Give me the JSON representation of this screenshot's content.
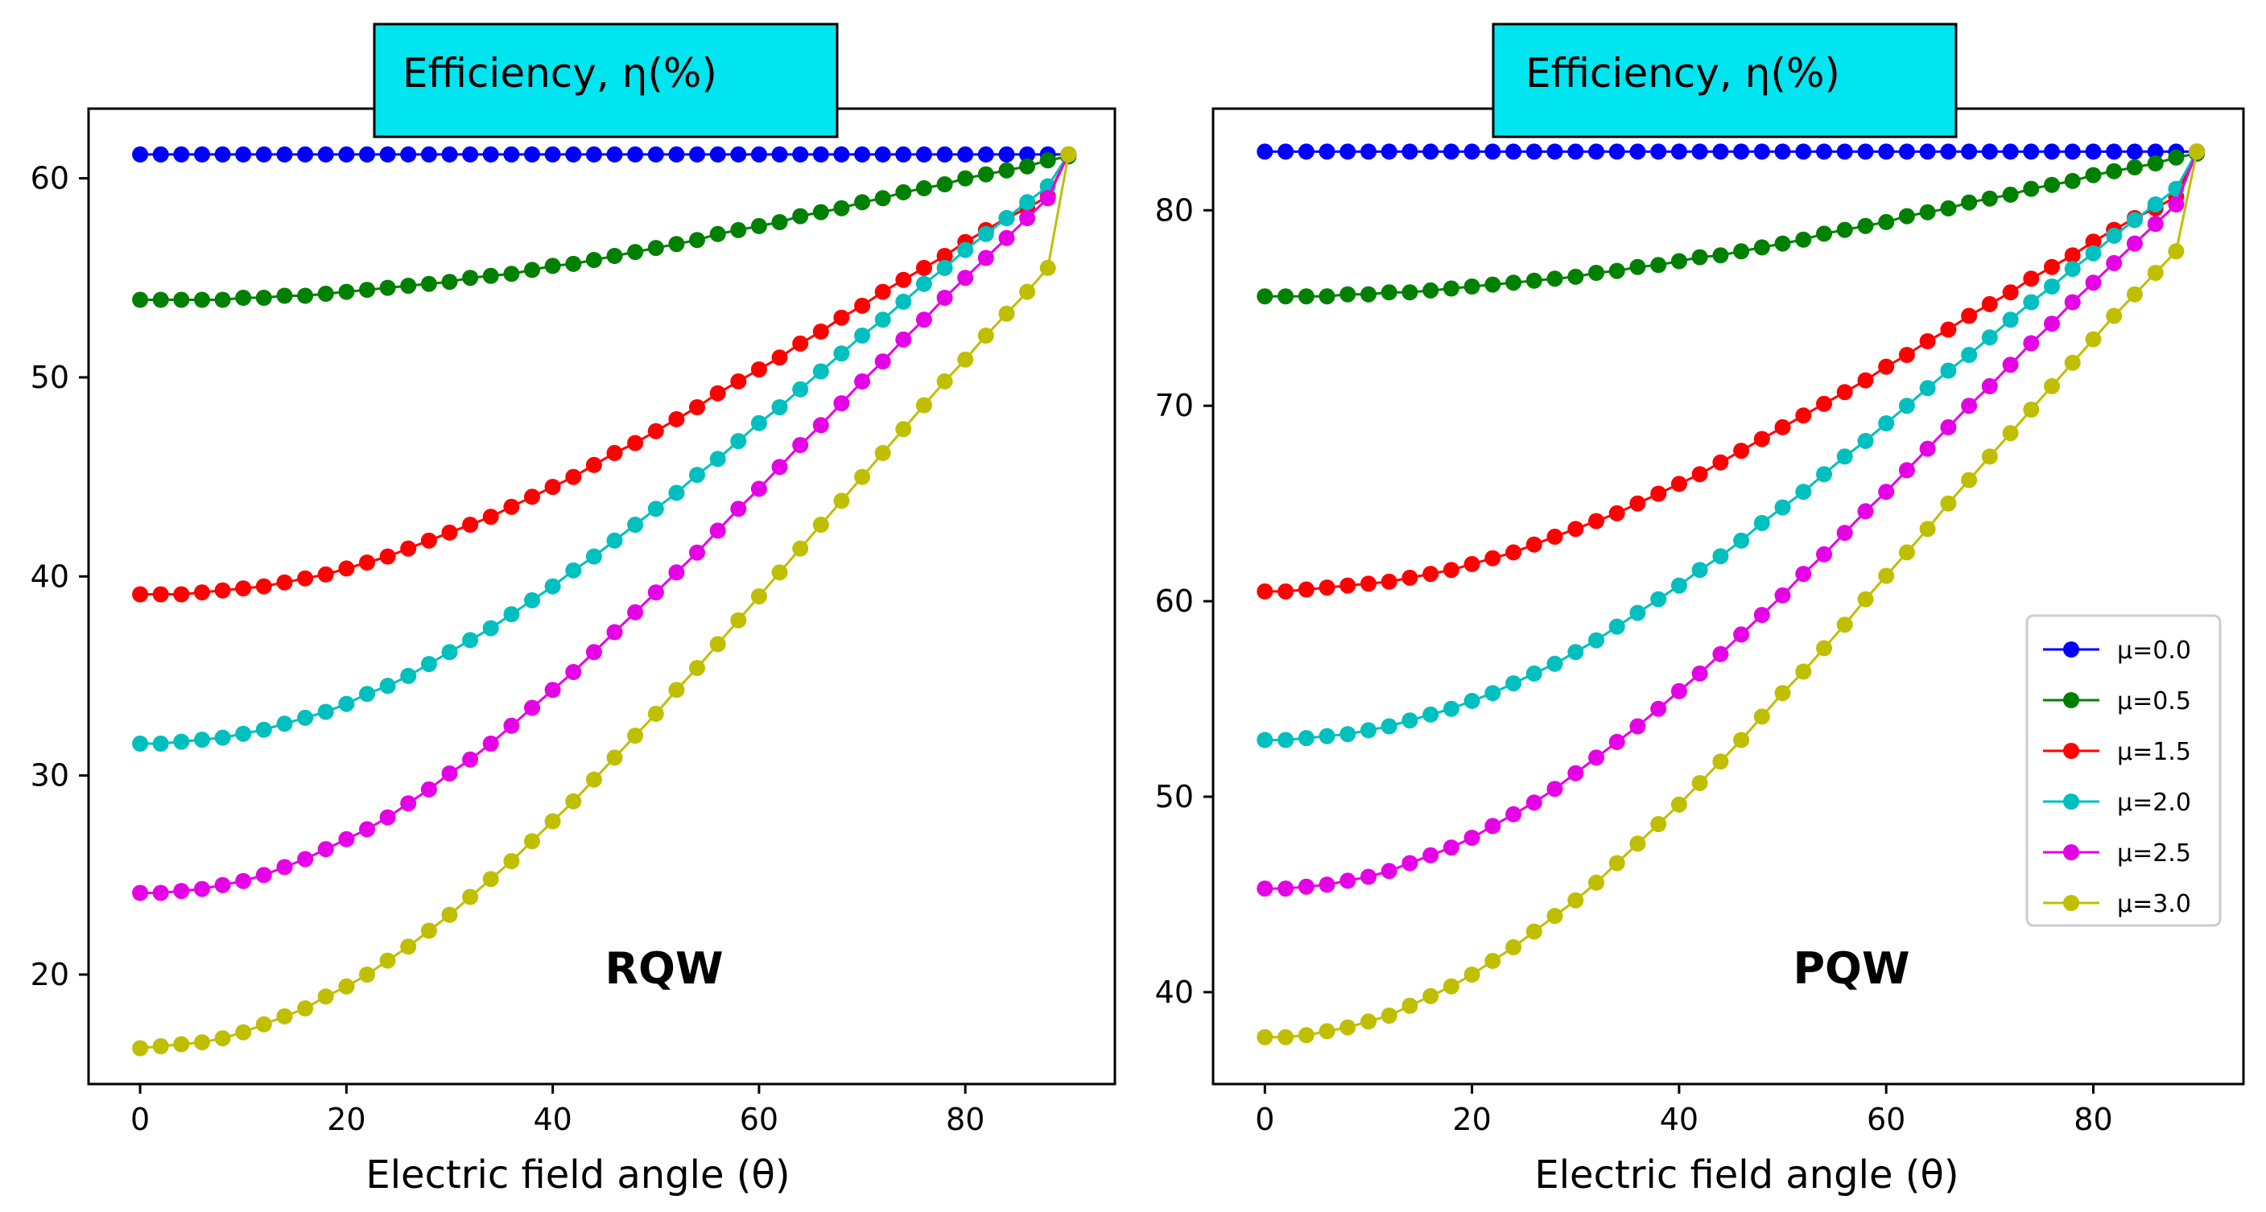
{
  "colors": {
    "title_box": "#00e5ef",
    "series": [
      "#0000ff",
      "#008000",
      "#ff0000",
      "#00bfbf",
      "#e600e6",
      "#bfbf00"
    ]
  },
  "chart_data": [
    {
      "type": "line",
      "title": "Efficiency, η(%)",
      "annotation": "RQW",
      "xlabel": "Electric field angle (θ)",
      "ylabel": "",
      "xlim": [
        -5,
        94.5
      ],
      "ylim": [
        14.5,
        63.5
      ],
      "xticks": [
        0,
        20,
        40,
        60,
        80
      ],
      "yticks": [
        20,
        30,
        40,
        50,
        60
      ],
      "legend": null,
      "marker": "circle",
      "x": [
        0,
        2,
        4,
        6,
        8,
        10,
        12,
        14,
        16,
        18,
        20,
        22,
        24,
        26,
        28,
        30,
        32,
        34,
        36,
        38,
        40,
        42,
        44,
        46,
        48,
        50,
        52,
        54,
        56,
        58,
        60,
        62,
        64,
        66,
        68,
        70,
        72,
        74,
        76,
        78,
        80,
        82,
        84,
        86,
        88,
        90
      ],
      "series": [
        {
          "name": "μ=0.0",
          "mu": 0.0,
          "values": [
            61.2,
            61.2,
            61.2,
            61.2,
            61.2,
            61.2,
            61.2,
            61.2,
            61.2,
            61.2,
            61.2,
            61.2,
            61.2,
            61.2,
            61.2,
            61.2,
            61.2,
            61.2,
            61.2,
            61.2,
            61.2,
            61.2,
            61.2,
            61.2,
            61.2,
            61.2,
            61.2,
            61.2,
            61.2,
            61.2,
            61.2,
            61.2,
            61.2,
            61.2,
            61.2,
            61.2,
            61.2,
            61.2,
            61.2,
            61.2,
            61.2,
            61.2,
            61.2,
            61.2,
            61.2,
            61.2
          ]
        },
        {
          "name": "μ=0.5",
          "mu": 0.5,
          "values": [
            53.9,
            53.9,
            53.9,
            53.9,
            53.9,
            54.0,
            54.0,
            54.1,
            54.1,
            54.2,
            54.3,
            54.4,
            54.5,
            54.6,
            54.7,
            54.8,
            55.0,
            55.1,
            55.2,
            55.4,
            55.6,
            55.7,
            55.9,
            56.1,
            56.3,
            56.5,
            56.7,
            56.9,
            57.2,
            57.4,
            57.6,
            57.8,
            58.1,
            58.3,
            58.5,
            58.8,
            59.0,
            59.3,
            59.5,
            59.7,
            60.0,
            60.2,
            60.4,
            60.6,
            60.9,
            61.1
          ]
        },
        {
          "name": "μ=1.5",
          "mu": 1.5,
          "values": [
            39.1,
            39.1,
            39.1,
            39.2,
            39.3,
            39.4,
            39.5,
            39.7,
            39.9,
            40.1,
            40.4,
            40.7,
            41.0,
            41.4,
            41.8,
            42.2,
            42.6,
            43.0,
            43.5,
            44.0,
            44.5,
            45.0,
            45.6,
            46.2,
            46.7,
            47.3,
            47.9,
            48.5,
            49.2,
            49.8,
            50.4,
            51.0,
            51.7,
            52.3,
            53.0,
            53.6,
            54.3,
            54.9,
            55.5,
            56.1,
            56.8,
            57.4,
            58.0,
            58.5,
            59.1,
            61.2
          ]
        },
        {
          "name": "μ=2.0",
          "mu": 2.0,
          "values": [
            31.6,
            31.6,
            31.7,
            31.8,
            31.9,
            32.1,
            32.3,
            32.6,
            32.9,
            33.2,
            33.6,
            34.1,
            34.5,
            35.0,
            35.6,
            36.2,
            36.8,
            37.4,
            38.1,
            38.8,
            39.5,
            40.3,
            41.0,
            41.8,
            42.6,
            43.4,
            44.2,
            45.1,
            45.9,
            46.8,
            47.7,
            48.5,
            49.4,
            50.3,
            51.2,
            52.1,
            52.9,
            53.8,
            54.7,
            55.5,
            56.4,
            57.2,
            58.0,
            58.8,
            59.6,
            61.2
          ]
        },
        {
          "name": "μ=2.5",
          "mu": 2.5,
          "values": [
            24.1,
            24.1,
            24.2,
            24.3,
            24.5,
            24.7,
            25.0,
            25.4,
            25.8,
            26.3,
            26.8,
            27.3,
            27.9,
            28.6,
            29.3,
            30.1,
            30.8,
            31.6,
            32.5,
            33.4,
            34.3,
            35.2,
            36.2,
            37.2,
            38.2,
            39.2,
            40.2,
            41.2,
            42.3,
            43.4,
            44.4,
            45.5,
            46.6,
            47.6,
            48.7,
            49.8,
            50.8,
            51.9,
            52.9,
            54.0,
            55.0,
            56.0,
            57.0,
            58.0,
            59.0,
            61.2
          ]
        },
        {
          "name": "μ=3.0",
          "mu": 3.0,
          "values": [
            16.3,
            16.4,
            16.5,
            16.6,
            16.8,
            17.1,
            17.5,
            17.9,
            18.3,
            18.9,
            19.4,
            20.0,
            20.7,
            21.4,
            22.2,
            23.0,
            23.9,
            24.8,
            25.7,
            26.7,
            27.7,
            28.7,
            29.8,
            30.9,
            32.0,
            33.1,
            34.3,
            35.4,
            36.6,
            37.8,
            39.0,
            40.2,
            41.4,
            42.6,
            43.8,
            45.0,
            46.2,
            47.4,
            48.6,
            49.8,
            50.9,
            52.1,
            53.2,
            54.3,
            55.5,
            61.2
          ]
        }
      ]
    },
    {
      "type": "line",
      "title": "Efficiency, η(%)",
      "annotation": "PQW",
      "xlabel": "Electric field angle (θ)",
      "ylabel": "",
      "xlim": [
        -5,
        94.5
      ],
      "ylim": [
        35.3,
        85.2
      ],
      "xticks": [
        0,
        20,
        40,
        60,
        80
      ],
      "yticks": [
        40,
        50,
        60,
        70,
        80
      ],
      "legend": "lower-right",
      "marker": "circle",
      "x": [
        0,
        2,
        4,
        6,
        8,
        10,
        12,
        14,
        16,
        18,
        20,
        22,
        24,
        26,
        28,
        30,
        32,
        34,
        36,
        38,
        40,
        42,
        44,
        46,
        48,
        50,
        52,
        54,
        56,
        58,
        60,
        62,
        64,
        66,
        68,
        70,
        72,
        74,
        76,
        78,
        80,
        82,
        84,
        86,
        88,
        90
      ],
      "series": [
        {
          "name": "μ=0.0",
          "mu": 0.0,
          "values": [
            83.0,
            83.0,
            83.0,
            83.0,
            83.0,
            83.0,
            83.0,
            83.0,
            83.0,
            83.0,
            83.0,
            83.0,
            83.0,
            83.0,
            83.0,
            83.0,
            83.0,
            83.0,
            83.0,
            83.0,
            83.0,
            83.0,
            83.0,
            83.0,
            83.0,
            83.0,
            83.0,
            83.0,
            83.0,
            83.0,
            83.0,
            83.0,
            83.0,
            83.0,
            83.0,
            83.0,
            83.0,
            83.0,
            83.0,
            83.0,
            83.0,
            83.0,
            83.0,
            83.0,
            83.0,
            83.0
          ]
        },
        {
          "name": "μ=0.5",
          "mu": 0.5,
          "values": [
            75.6,
            75.6,
            75.6,
            75.6,
            75.7,
            75.7,
            75.8,
            75.8,
            75.9,
            76.0,
            76.1,
            76.2,
            76.3,
            76.4,
            76.5,
            76.6,
            76.8,
            76.9,
            77.1,
            77.2,
            77.4,
            77.6,
            77.7,
            77.9,
            78.1,
            78.3,
            78.5,
            78.8,
            79.0,
            79.2,
            79.4,
            79.7,
            79.9,
            80.1,
            80.4,
            80.6,
            80.8,
            81.1,
            81.3,
            81.5,
            81.8,
            82.0,
            82.2,
            82.4,
            82.7,
            82.9
          ]
        },
        {
          "name": "μ=1.5",
          "mu": 1.5,
          "values": [
            60.5,
            60.5,
            60.6,
            60.7,
            60.8,
            60.9,
            61.0,
            61.2,
            61.4,
            61.6,
            61.9,
            62.2,
            62.5,
            62.9,
            63.3,
            63.7,
            64.1,
            64.5,
            65.0,
            65.5,
            66.0,
            66.5,
            67.1,
            67.7,
            68.3,
            68.9,
            69.5,
            70.1,
            70.7,
            71.3,
            72.0,
            72.6,
            73.3,
            73.9,
            74.6,
            75.2,
            75.8,
            76.5,
            77.1,
            77.7,
            78.4,
            79.0,
            79.6,
            80.1,
            80.7,
            83.0
          ]
        },
        {
          "name": "μ=2.0",
          "mu": 2.0,
          "values": [
            52.9,
            52.9,
            53.0,
            53.1,
            53.2,
            53.4,
            53.6,
            53.9,
            54.2,
            54.5,
            54.9,
            55.3,
            55.8,
            56.3,
            56.8,
            57.4,
            58.0,
            58.7,
            59.4,
            60.1,
            60.8,
            61.6,
            62.3,
            63.1,
            64.0,
            64.8,
            65.6,
            66.5,
            67.4,
            68.2,
            69.1,
            70.0,
            70.9,
            71.8,
            72.6,
            73.5,
            74.4,
            75.3,
            76.1,
            77.0,
            77.8,
            78.7,
            79.5,
            80.3,
            81.1,
            83.0
          ]
        },
        {
          "name": "μ=2.5",
          "mu": 2.5,
          "values": [
            45.3,
            45.3,
            45.4,
            45.5,
            45.7,
            45.9,
            46.2,
            46.6,
            47.0,
            47.4,
            47.9,
            48.5,
            49.1,
            49.7,
            50.4,
            51.2,
            52.0,
            52.8,
            53.6,
            54.5,
            55.4,
            56.3,
            57.3,
            58.3,
            59.3,
            60.3,
            61.4,
            62.4,
            63.5,
            64.6,
            65.6,
            66.7,
            67.8,
            68.9,
            70.0,
            71.0,
            72.1,
            73.2,
            74.2,
            75.3,
            76.3,
            77.3,
            78.3,
            79.3,
            80.3,
            83.0
          ]
        },
        {
          "name": "μ=3.0",
          "mu": 3.0,
          "values": [
            37.7,
            37.7,
            37.8,
            38.0,
            38.2,
            38.5,
            38.8,
            39.3,
            39.8,
            40.3,
            40.9,
            41.6,
            42.3,
            43.1,
            43.9,
            44.7,
            45.6,
            46.6,
            47.6,
            48.6,
            49.6,
            50.7,
            51.8,
            52.9,
            54.1,
            55.3,
            56.4,
            57.6,
            58.8,
            60.1,
            61.3,
            62.5,
            63.7,
            65.0,
            66.2,
            67.4,
            68.6,
            69.8,
            71.0,
            72.2,
            73.4,
            74.6,
            75.7,
            76.8,
            77.9,
            83.0
          ]
        }
      ]
    }
  ]
}
